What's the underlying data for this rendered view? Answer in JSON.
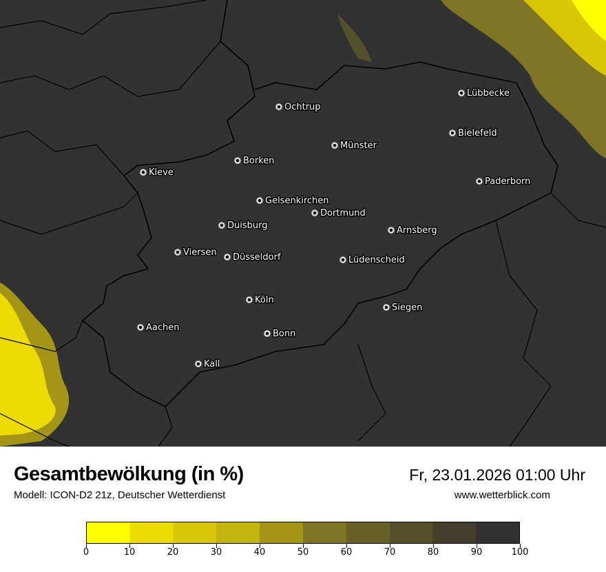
{
  "header": {
    "title": "Gesamtbewölkung (in %)",
    "subtitle": "Modell: ICON-D2 21z, Deutscher Wetterdienst",
    "datetime": "Fr, 23.01.2026 01:00 Uhr",
    "website": "www.wetterblick.com"
  },
  "map": {
    "background_color": "#323232",
    "cities": [
      "Ochtrup",
      "Lübbecke",
      "Bielefeld",
      "Münster",
      "Borken",
      "Kleve",
      "Paderborn",
      "Gelsenkirchen",
      "Dortmund",
      "Duisburg",
      "Arnsberg",
      "Viersen",
      "Düsseldorf",
      "Lüdenscheid",
      "Köln",
      "Siegen",
      "Aachen",
      "Bonn",
      "Kall"
    ]
  },
  "legend": {
    "ticks": [
      "0",
      "10",
      "20",
      "30",
      "40",
      "50",
      "60",
      "70",
      "80",
      "90",
      "100"
    ],
    "colors": [
      "#ffff00",
      "#eedb05",
      "#d9c707",
      "#c4b50f",
      "#a39616",
      "#7f7424",
      "#696228",
      "#555029",
      "#433f2c",
      "#323232"
    ]
  }
}
